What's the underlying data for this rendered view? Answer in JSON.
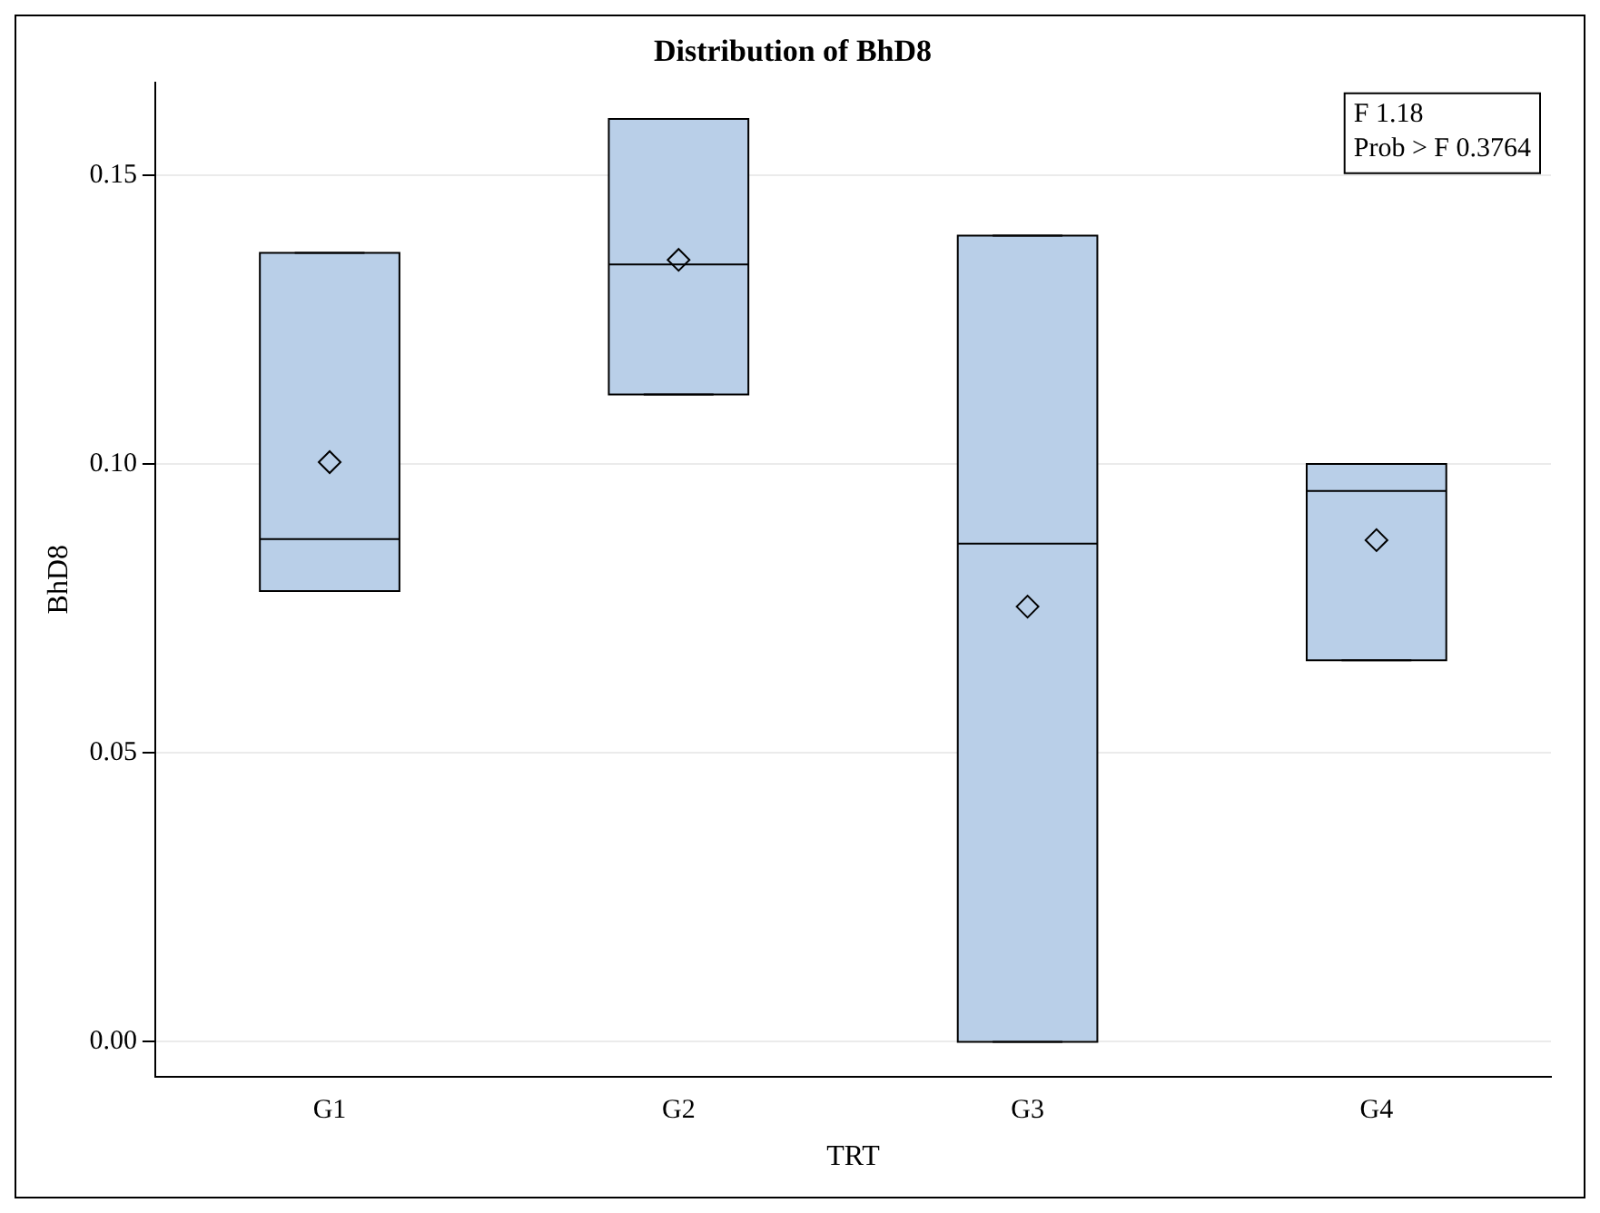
{
  "chart_data": {
    "type": "box",
    "title": "Distribution of BhD8",
    "xlabel": "TRT",
    "ylabel": "BhD8",
    "categories": [
      "G1",
      "G2",
      "G3",
      "G4"
    ],
    "color": "#b9cfe8",
    "boxes": [
      {
        "low": 0.078,
        "q1": 0.078,
        "median": 0.087,
        "q3": 0.1365,
        "high": 0.1365,
        "mean": 0.1003
      },
      {
        "low": 0.112,
        "q1": 0.112,
        "median": 0.1345,
        "q3": 0.1597,
        "high": 0.1597,
        "mean": 0.1353
      },
      {
        "low": 0,
        "q1": 0,
        "median": 0.0862,
        "q3": 0.1395,
        "high": 0.1395,
        "mean": 0.0753
      },
      {
        "low": 0.066,
        "q1": 0.066,
        "median": 0.0953,
        "q3": 0.1,
        "high": 0.1,
        "mean": 0.0868
      }
    ],
    "ylim": [
      -0.006,
      0.166
    ],
    "yticks": [
      {
        "value": 0,
        "label": "0.00"
      },
      0.05,
      {
        "value": 0.1,
        "label": "0.10"
      },
      0.15
    ],
    "grid": "y",
    "legend": false,
    "annotations": [
      "F 1.18",
      "Prob > F 0.3764"
    ]
  }
}
